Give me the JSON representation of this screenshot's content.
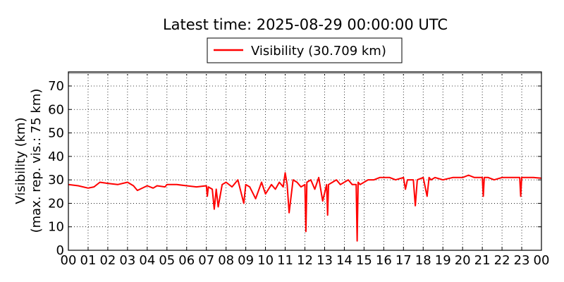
{
  "chart_data": {
    "type": "line",
    "title": "Latest time: 2025-08-29 00:00:00 UTC",
    "ylabel_line1": "Visibility (km)",
    "ylabel_line2": "(max. rep. vis.: 75 km)",
    "xlabel": "",
    "ylim": [
      0,
      76
    ],
    "xlim": [
      0,
      24
    ],
    "yticks": [
      0,
      10,
      20,
      30,
      40,
      50,
      60,
      70
    ],
    "xtick_labels": [
      "00",
      "01",
      "02",
      "03",
      "04",
      "05",
      "06",
      "07",
      "08",
      "09",
      "10",
      "11",
      "12",
      "13",
      "14",
      "15",
      "16",
      "17",
      "18",
      "19",
      "20",
      "21",
      "22",
      "23",
      "00"
    ],
    "grid": true,
    "legend_position": "top-center",
    "series": [
      {
        "name": "Visibility (30.709 km)",
        "color": "#ff0000",
        "x": [
          0,
          0.5,
          1,
          1.3,
          1.6,
          2,
          2.5,
          3,
          3.3,
          3.5,
          4,
          4.3,
          4.5,
          4.9,
          5,
          5.5,
          6,
          6.5,
          7,
          7.05,
          7.1,
          7.3,
          7.4,
          7.5,
          7.6,
          7.8,
          8,
          8.3,
          8.6,
          8.9,
          9,
          9.2,
          9.5,
          9.8,
          10,
          10.3,
          10.5,
          10.7,
          10.9,
          11.0,
          11.1,
          11.2,
          11.4,
          11.6,
          11.8,
          12.0,
          12.05,
          12.1,
          12.3,
          12.5,
          12.7,
          12.9,
          13.1,
          13.15,
          13.2,
          13.4,
          13.6,
          13.8,
          14,
          14.2,
          14.4,
          14.6,
          14.65,
          14.7,
          14.8,
          15,
          15.2,
          15.5,
          15.8,
          16,
          16.3,
          16.6,
          17,
          17.1,
          17.2,
          17.5,
          17.6,
          17.7,
          18,
          18.2,
          18.3,
          18.4,
          18.6,
          19,
          19.5,
          20,
          20.3,
          20.6,
          21,
          21.05,
          21.1,
          21.3,
          21.6,
          22,
          22.3,
          22.6,
          22.9,
          22.95,
          23,
          23.3,
          23.6,
          24
        ],
        "values": [
          28,
          27.5,
          26.5,
          27,
          29,
          28.5,
          28,
          29,
          27.5,
          25.5,
          27.5,
          26.5,
          27.5,
          27,
          28,
          28,
          27.5,
          27,
          27.5,
          23,
          27,
          26,
          17.5,
          26,
          18.5,
          28,
          29,
          27,
          30,
          20,
          28,
          27,
          22,
          29,
          24,
          28,
          26,
          29,
          27,
          33,
          28,
          16,
          30,
          29,
          27,
          28,
          8,
          29,
          30,
          26,
          31,
          21,
          28,
          15,
          28,
          29,
          30,
          28,
          29,
          30,
          28,
          28,
          4,
          29,
          28,
          29,
          30,
          30,
          31,
          31,
          31,
          30,
          31,
          26,
          30,
          30,
          19,
          30,
          31,
          23,
          31,
          30,
          31,
          30,
          31,
          31,
          32,
          31,
          31,
          23,
          31,
          31,
          30,
          31,
          31,
          31,
          31,
          23,
          31,
          31,
          31,
          30.7
        ]
      }
    ]
  }
}
